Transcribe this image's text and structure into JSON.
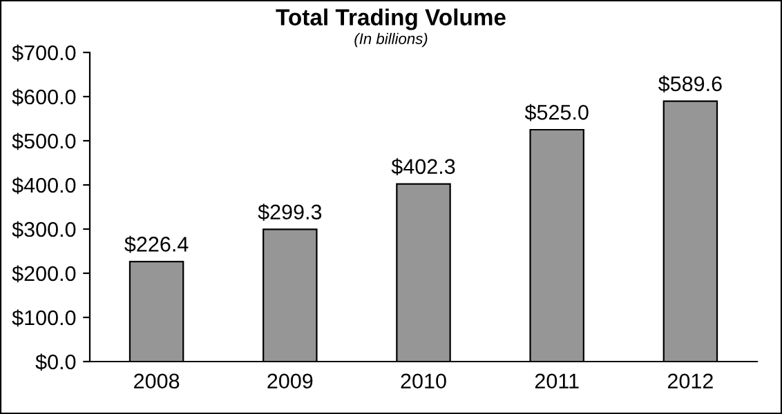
{
  "chart_data": {
    "type": "bar",
    "title": "Total Trading Volume",
    "subtitle": "(In billions)",
    "categories": [
      "2008",
      "2009",
      "2010",
      "2011",
      "2012"
    ],
    "values": [
      226.4,
      299.3,
      402.3,
      525.0,
      589.6
    ],
    "color": "#969696",
    "value_labels": [
      "$226.4",
      "$299.3",
      "$402.3",
      "$525.0",
      "$589.6"
    ],
    "ylim": [
      0,
      700
    ],
    "yticks": [
      {
        "value": 0,
        "label": "$0.0"
      },
      {
        "value": 100,
        "label": "$100.0"
      },
      {
        "value": 200,
        "label": "$200.0"
      },
      {
        "value": 300,
        "label": "$300.0"
      },
      {
        "value": 400,
        "label": "$400.0"
      },
      {
        "value": 500,
        "label": "$500.0"
      },
      {
        "value": 600,
        "label": "$600.0"
      },
      {
        "value": 700,
        "label": "$700.0"
      }
    ],
    "grid": false,
    "legend": false
  }
}
